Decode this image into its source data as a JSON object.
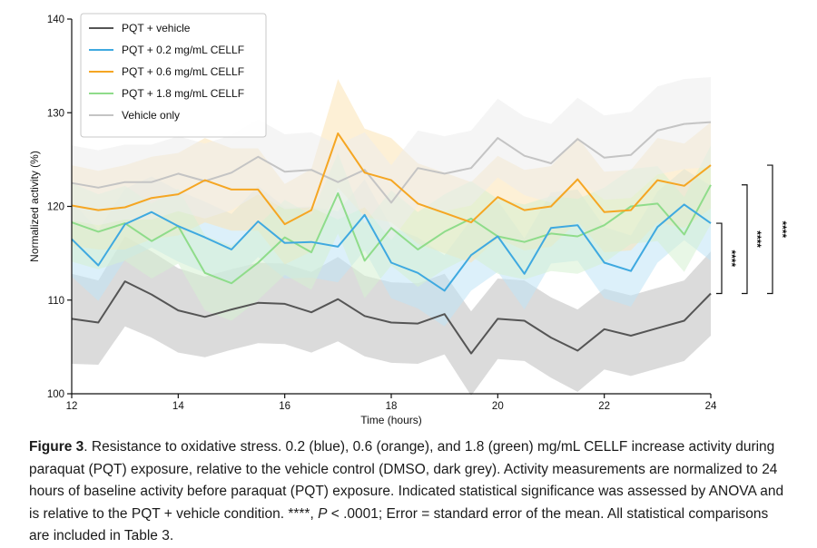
{
  "chart_data": {
    "type": "line",
    "xlabel": "Time (hours)",
    "ylabel": "Normalized activity (%)",
    "xlim": [
      12,
      24
    ],
    "ylim": [
      100,
      140
    ],
    "xticks": [
      12,
      14,
      16,
      18,
      20,
      22,
      24
    ],
    "yticks": [
      100,
      110,
      120,
      130,
      140
    ],
    "x": [
      12,
      12.5,
      13,
      13.5,
      14,
      14.5,
      15,
      15.5,
      16,
      16.5,
      17,
      17.5,
      18,
      18.5,
      19,
      19.5,
      20,
      20.5,
      21,
      21.5,
      22,
      22.5,
      23,
      23.5,
      24
    ],
    "legend_position": "top-left",
    "series": [
      {
        "name": "PQT + vehicle",
        "color": "#555555",
        "band_color": "#bdbdbd",
        "values": [
          108.0,
          107.6,
          112.0,
          110.6,
          108.9,
          108.2,
          109.0,
          109.7,
          109.6,
          108.7,
          110.1,
          108.3,
          107.6,
          107.5,
          108.5,
          104.3,
          108.0,
          107.8,
          106.0,
          104.6,
          106.9,
          106.2,
          107.0,
          107.8,
          110.7
        ],
        "error": [
          4.8,
          4.5,
          4.8,
          4.6,
          4.5,
          4.3,
          4.3,
          4.3,
          4.3,
          4.3,
          4.5,
          4.3,
          4.3,
          4.3,
          4.3,
          4.5,
          4.3,
          4.3,
          4.3,
          4.4,
          4.3,
          4.3,
          4.3,
          4.3,
          4.5
        ]
      },
      {
        "name": "PQT + 0.2 mg/mL CELLF",
        "color": "#3fa9e0",
        "band_color": "#bfe3f5",
        "values": [
          116.5,
          113.7,
          118.1,
          119.4,
          117.9,
          116.7,
          115.4,
          118.4,
          116.1,
          116.2,
          115.7,
          119.1,
          114.0,
          112.9,
          111.0,
          114.8,
          116.8,
          112.8,
          117.7,
          118.0,
          114.0,
          113.1,
          117.8,
          120.2,
          118.2
        ],
        "error": [
          4.0,
          3.8,
          3.8,
          3.8,
          3.8,
          3.8,
          3.8,
          3.8,
          3.8,
          3.8,
          3.8,
          3.8,
          3.8,
          3.8,
          3.8,
          3.8,
          3.8,
          3.8,
          3.8,
          3.8,
          3.8,
          3.8,
          3.8,
          3.8,
          4.0
        ]
      },
      {
        "name": "PQT + 0.6 mg/mL CELLF",
        "color": "#f5a623",
        "band_color": "#fbe3b4",
        "values": [
          120.1,
          119.6,
          119.9,
          120.9,
          121.3,
          122.8,
          121.8,
          121.8,
          118.1,
          119.6,
          127.8,
          123.6,
          122.8,
          120.3,
          119.3,
          118.3,
          121.0,
          119.6,
          120.0,
          122.9,
          119.4,
          119.6,
          122.8,
          122.2,
          124.4
        ],
        "error": [
          4.3,
          4.2,
          4.5,
          4.4,
          4.4,
          4.5,
          4.4,
          4.4,
          4.3,
          4.4,
          5.8,
          4.7,
          4.5,
          4.3,
          4.3,
          4.3,
          4.4,
          4.3,
          4.3,
          4.5,
          4.3,
          4.3,
          4.5,
          4.5,
          4.6
        ]
      },
      {
        "name": "PQT + 1.8 mg/mL CELLF",
        "color": "#8fdc8a",
        "band_color": "#d6f1d1",
        "values": [
          118.3,
          117.3,
          118.2,
          116.3,
          117.9,
          112.9,
          111.8,
          114.0,
          116.7,
          115.1,
          121.4,
          114.2,
          117.7,
          115.4,
          117.3,
          118.7,
          116.8,
          116.2,
          117.1,
          116.8,
          118.0,
          120.0,
          120.3,
          117.0,
          122.3
        ],
        "error": [
          4.2,
          4.0,
          4.0,
          4.0,
          4.0,
          4.0,
          4.0,
          4.0,
          4.0,
          4.0,
          4.3,
          4.0,
          4.0,
          4.0,
          4.0,
          4.0,
          4.0,
          4.0,
          4.0,
          4.0,
          4.0,
          4.0,
          4.0,
          4.0,
          4.2
        ]
      },
      {
        "name": "Vehicle only",
        "color": "#c4c4c4",
        "band_color": "#ececec",
        "values": [
          122.5,
          122.0,
          122.6,
          122.6,
          123.5,
          122.7,
          123.6,
          125.3,
          123.7,
          123.9,
          122.6,
          123.9,
          120.4,
          124.1,
          123.5,
          124.1,
          127.3,
          125.4,
          124.6,
          127.2,
          125.2,
          125.5,
          128.1,
          128.8,
          129.0
        ],
        "error": [
          4.0,
          4.0,
          4.0,
          4.0,
          4.0,
          4.0,
          4.0,
          4.0,
          4.0,
          4.0,
          4.0,
          4.0,
          4.0,
          4.0,
          4.0,
          4.0,
          4.2,
          4.2,
          4.2,
          4.4,
          4.5,
          4.6,
          4.7,
          4.8,
          4.8
        ]
      }
    ],
    "significance": [
      {
        "label": "****",
        "from": 110.7,
        "to": 118.2
      },
      {
        "label": "****",
        "from": 110.7,
        "to": 122.3
      },
      {
        "label": "****",
        "from": 110.7,
        "to": 124.4
      }
    ]
  },
  "caption": {
    "label": "Figure 3",
    "text_1": ". Resistance to oxidative stress. 0.2 (blue), 0.6 (orange), and 1.8 (green) mg/mL CELLF increase activity during paraquat (PQT) exposure, relative to the vehicle control (DMSO, dark grey). Activity measurements are normalized to 24 hours of baseline activity before paraquat (PQT) exposure. Indicated statistical significance was assessed by ANOVA and is relative to the PQT + vehicle condition. ****, ",
    "p_symbol": "P",
    "text_2": " < .0001; Error = standard error of the mean. All statistical comparisons are included in Table 3."
  }
}
